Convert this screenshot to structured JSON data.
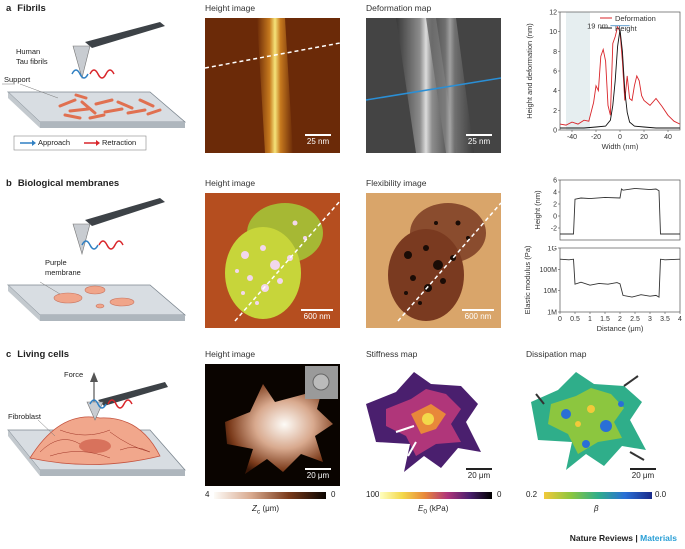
{
  "rows": [
    {
      "letter": "a",
      "title": "Fibrils"
    },
    {
      "letter": "b",
      "title": "Biological membranes"
    },
    {
      "letter": "c",
      "title": "Living cells"
    }
  ],
  "row_a": {
    "panel1_title": "Height image",
    "panel2_title": "Deformation map",
    "schematic": {
      "fibrils_label": "Human\nTau fibrils",
      "support_label": "Support",
      "approach": "Approach",
      "retraction": "Retraction"
    },
    "scale1": "25 nm",
    "scale2": "25 nm"
  },
  "row_b": {
    "panel1_title": "Height image",
    "panel2_title": "Flexibility image",
    "schematic": {
      "membrane_label": "Purple\nmembrane"
    },
    "scale1": "600 nm",
    "scale2": "600 nm"
  },
  "row_c": {
    "panel1_title": "Height image",
    "panel2_title": "Stiffness map",
    "panel3_title": "Dissipation map",
    "schematic": {
      "force_label": "Force",
      "fibroblast_label": "Fibroblast"
    },
    "scale1": "20 μm",
    "scale2": "20 μm",
    "scale3": "20 μm",
    "colorbar1": {
      "min": "4",
      "max": "0",
      "label": "Z",
      "label_sub": "c",
      "unit": " (μm)"
    },
    "colorbar2": {
      "min": "100",
      "max": "0",
      "label": "E",
      "label_sub": "0",
      "unit": " (kPa)"
    },
    "colorbar3": {
      "min": "0.2",
      "max": "0.0",
      "label": "β"
    }
  },
  "footer": {
    "publisher": "Nature Reviews",
    "separator": " | ",
    "journal": "Materials"
  },
  "chart_data": [
    {
      "type": "line",
      "xlabel": "Width (nm)",
      "ylabel": "Height and deformation (nm)",
      "xlim": [
        -50,
        50
      ],
      "ylim": [
        0,
        12
      ],
      "xticks": [
        -40,
        -20,
        0,
        20,
        40
      ],
      "yticks": [
        0,
        2,
        4,
        6,
        8,
        10,
        12
      ],
      "annotation": "19 nm",
      "legend": "top-right",
      "series": [
        {
          "name": "Deformation",
          "color": "#d9252a",
          "x": [
            -50,
            -45,
            -40,
            -35,
            -30,
            -26,
            -22,
            -20,
            -18,
            -16,
            -14,
            -12,
            -10,
            -8,
            -6,
            -4,
            -2,
            0,
            2,
            4,
            6,
            8,
            10,
            12,
            14,
            16,
            18,
            20,
            25,
            30,
            35,
            40,
            45,
            50
          ],
          "y": [
            0.6,
            0.5,
            0.8,
            0.6,
            1.0,
            0.9,
            2.8,
            4.5,
            4.0,
            7.5,
            8.2,
            7.0,
            2.5,
            1.5,
            8.8,
            9.5,
            10.5,
            10.0,
            7.0,
            3.0,
            5.5,
            3.2,
            3.0,
            4.5,
            5.5,
            5.0,
            3.5,
            3.0,
            2.5,
            3.2,
            2.4,
            1.5,
            0.9,
            0.6
          ]
        },
        {
          "name": "Height",
          "color": "#111111",
          "x": [
            -50,
            -40,
            -30,
            -20,
            -12,
            -8,
            -6,
            -4,
            -2,
            0,
            2,
            4,
            6,
            8,
            12,
            20,
            30,
            40,
            50
          ],
          "y": [
            0.2,
            0.2,
            0.2,
            0.3,
            0.4,
            1.0,
            2.5,
            5.0,
            8.5,
            10.2,
            8.0,
            4.0,
            1.8,
            0.8,
            0.4,
            0.3,
            0.2,
            0.2,
            0.2
          ]
        }
      ]
    },
    {
      "type": "line",
      "xlabel": "",
      "ylabel": "Height (nm)",
      "xlim": [
        0,
        4
      ],
      "ylim": [
        -4,
        6
      ],
      "yticks": [
        -2,
        0,
        2,
        4,
        6
      ],
      "series": [
        {
          "color": "#333333",
          "x": [
            0,
            0.3,
            0.45,
            0.5,
            0.7,
            1.0,
            1.5,
            2.0,
            2.05,
            2.1,
            2.5,
            3.0,
            3.2,
            3.3,
            3.35,
            3.5,
            4.0
          ],
          "y": [
            -3.0,
            -3.0,
            -3.0,
            2.8,
            3.0,
            2.9,
            3.1,
            3.0,
            4.5,
            4.3,
            4.6,
            4.4,
            4.5,
            4.2,
            -3.0,
            -3.0,
            -3.0
          ]
        }
      ]
    },
    {
      "type": "line",
      "xlabel": "Distance (μm)",
      "ylabel": "Elastic modulus (Pa)",
      "xlim": [
        0,
        4
      ],
      "ylim": [
        "1M",
        "1G"
      ],
      "yscale": "log",
      "xticks": [
        0,
        0.5,
        1.0,
        1.5,
        2.0,
        2.5,
        3.0,
        3.5,
        4.0
      ],
      "yticks": [
        "1M",
        "10M",
        "100M",
        "1G"
      ],
      "series": [
        {
          "color": "#333333",
          "x": [
            0,
            0.3,
            0.45,
            0.5,
            0.7,
            1.0,
            1.3,
            1.6,
            1.9,
            2.0,
            2.1,
            2.4,
            2.7,
            3.0,
            3.2,
            3.3,
            3.35,
            3.5,
            4.0
          ],
          "y": [
            300000000,
            280000000,
            300000000,
            20000000,
            25000000,
            18000000,
            22000000,
            20000000,
            24000000,
            21000000,
            6000000,
            5000000,
            6500000,
            5500000,
            6000000,
            5000000,
            300000000,
            280000000,
            300000000
          ]
        }
      ]
    }
  ]
}
